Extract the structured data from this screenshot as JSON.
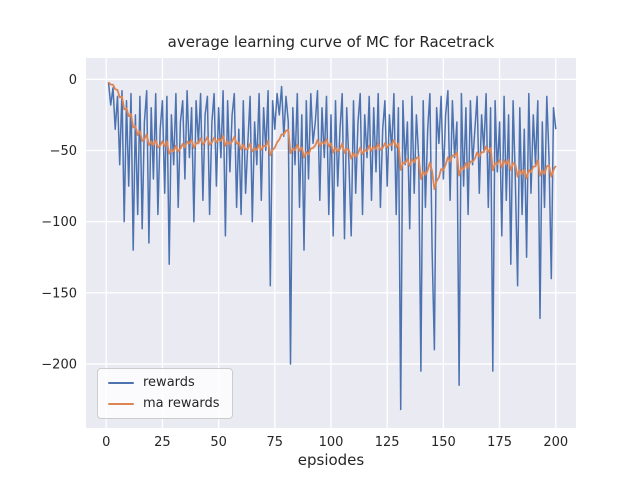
{
  "figure": {
    "title": "average learning curve of MC for Racetrack",
    "xlabel": "epsiodes"
  },
  "legend": {
    "items": [
      {
        "label": "rewards",
        "color": "#4c72b0"
      },
      {
        "label": "ma rewards",
        "color": "#dd8452"
      }
    ]
  },
  "chart_data": {
    "type": "line",
    "title": "average learning curve of MC for Racetrack",
    "xlabel": "epsiodes",
    "ylabel": "",
    "grid": true,
    "legend_position": "lower left",
    "plot_background": "#eaeaf2",
    "grid_color": "#ffffff",
    "text_color": "#262626",
    "xlim": [
      -9,
      209
    ],
    "ylim": [
      -245,
      15
    ],
    "xticks": [
      0,
      25,
      50,
      75,
      100,
      125,
      150,
      175,
      200
    ],
    "yticks": [
      0,
      -50,
      -100,
      -150,
      -200
    ],
    "series": [
      {
        "name": "rewards",
        "color": "#4c72b0",
        "x_start": 1,
        "values": [
          -2,
          -18,
          -6,
          -35,
          -12,
          -60,
          -8,
          -100,
          -15,
          -75,
          -10,
          -120,
          -25,
          -95,
          -12,
          -105,
          -30,
          -8,
          -115,
          -20,
          -70,
          -10,
          -95,
          -35,
          -15,
          -80,
          -12,
          -130,
          -25,
          -60,
          -10,
          -90,
          -30,
          -15,
          -70,
          -8,
          -55,
          -20,
          -100,
          -15,
          -45,
          -10,
          -85,
          -25,
          -12,
          -95,
          -30,
          -10,
          -75,
          -20,
          -55,
          -8,
          -110,
          -15,
          -65,
          -25,
          -10,
          -90,
          -35,
          -95,
          -15,
          -80,
          -45,
          -12,
          -100,
          -30,
          -60,
          -10,
          -85,
          -20,
          -50,
          -8,
          -145,
          -15,
          -35,
          -10,
          -25,
          -5,
          -40,
          -12,
          -30,
          -200,
          -20,
          -60,
          -10,
          -90,
          -25,
          -120,
          -15,
          -70,
          -10,
          -45,
          -30,
          -8,
          -85,
          -20,
          -55,
          -12,
          -95,
          -25,
          -110,
          -15,
          -75,
          -35,
          -10,
          -112,
          -20,
          -60,
          -110,
          -15,
          -80,
          -30,
          -10,
          -95,
          -25,
          -55,
          -12,
          -85,
          -20,
          -65,
          -10,
          -90,
          -35,
          -15,
          -75,
          -25,
          -50,
          -10,
          -95,
          -20,
          -232,
          -15,
          -60,
          -30,
          -105,
          -12,
          -80,
          -25,
          -55,
          -205,
          -15,
          -90,
          -35,
          -10,
          -120,
          -190,
          -20,
          -45,
          -12,
          -70,
          -25,
          -8,
          -85,
          -15,
          -55,
          -30,
          -215,
          -10,
          -75,
          -20,
          -95,
          -15,
          -60,
          -35,
          -12,
          -80,
          -25,
          -50,
          -10,
          -90,
          -20,
          -205,
          -15,
          -65,
          -30,
          -110,
          -12,
          -85,
          -25,
          -130,
          -15,
          -70,
          -145,
          -20,
          -95,
          -35,
          -125,
          -10,
          -80,
          -25,
          -60,
          -15,
          -168,
          -30,
          -90,
          -12,
          -55,
          -140,
          -20,
          -35
        ]
      },
      {
        "name": "ma rewards",
        "color": "#dd8452",
        "derived": "ema",
        "smoothing": 0.9
      }
    ]
  }
}
